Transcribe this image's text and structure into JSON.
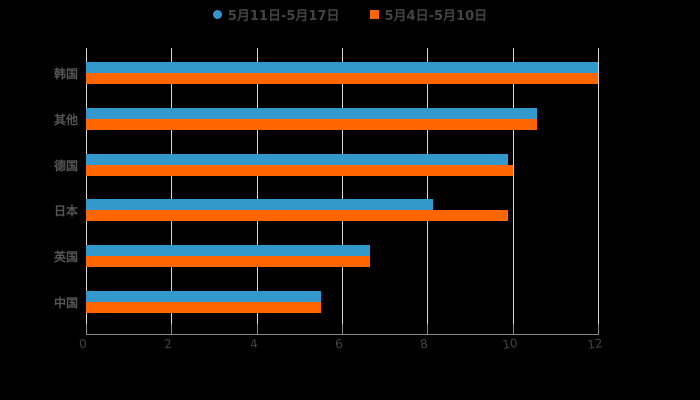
{
  "legend": [
    {
      "label": "5月11日-5月17日",
      "color": "#3399cc"
    },
    {
      "label": "5月4日-5月10日",
      "color": "#ff6600"
    }
  ],
  "chart_data": {
    "type": "bar",
    "orientation": "horizontal",
    "title": "",
    "xlabel": "",
    "ylabel": "",
    "categories": [
      "韩国",
      "其他",
      "德国",
      "日本",
      "英国",
      "中国"
    ],
    "series": [
      {
        "name": "5月11日-5月17日",
        "color": "#3399cc",
        "values": [
          12,
          10.57,
          9.89,
          8.13,
          6.66,
          5.5
        ]
      },
      {
        "name": "5月4日-5月10日",
        "color": "#ff6600",
        "values": [
          12,
          10.57,
          10.0,
          9.89,
          6.66,
          5.5
        ]
      }
    ],
    "xlim": [
      0,
      12
    ],
    "xticks": [
      "0",
      "2",
      "4",
      "6",
      "8",
      "10",
      "12"
    ],
    "grid": true,
    "legend_position": "top"
  }
}
